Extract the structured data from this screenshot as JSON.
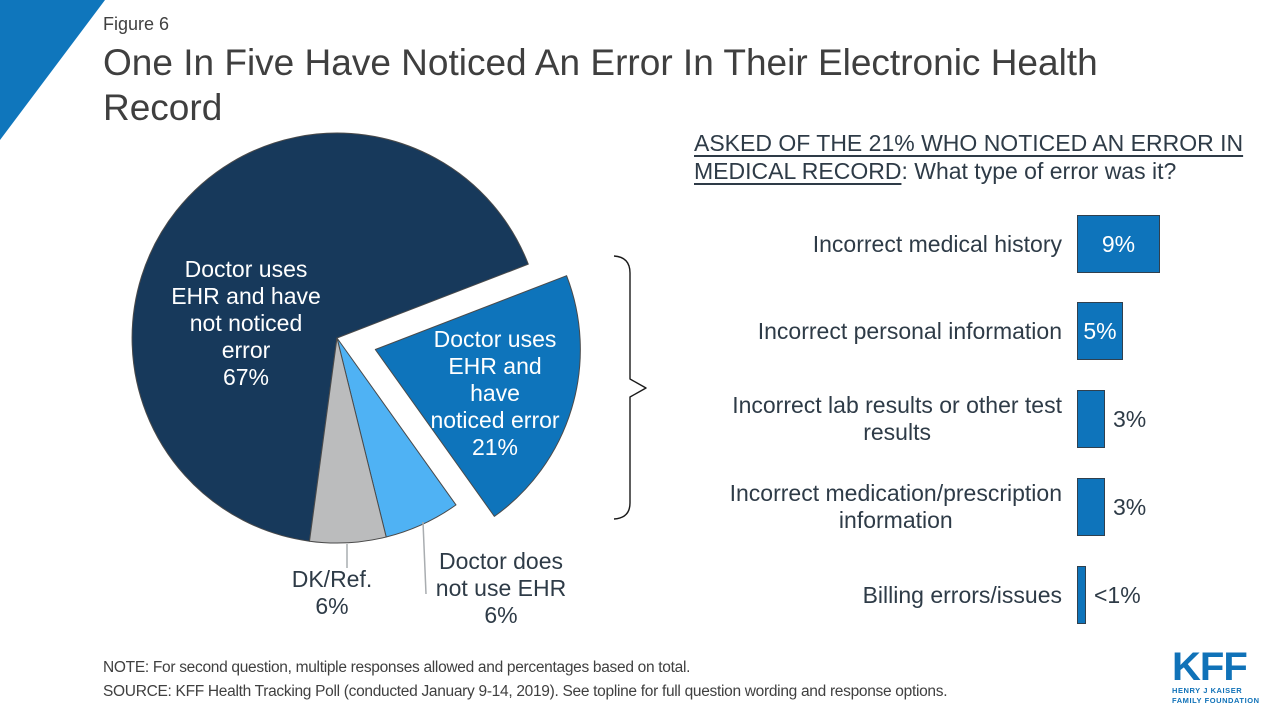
{
  "page": {
    "figure_label": "Figure 6",
    "title": "One In Five Have Noticed An Error In Their Electronic Health Record",
    "note": "NOTE: For second question, multiple responses allowed and percentages based on total.",
    "source": "SOURCE: KFF Health Tracking Poll (conducted January 9-14, 2019). See topline for full question wording and response options.",
    "logo": {
      "text": "KFF",
      "tagline1": "HENRY J KAISER",
      "tagline2": "FAMILY FOUNDATION"
    }
  },
  "colors": {
    "navy": "#17395B",
    "blue": "#0E74BB",
    "light_blue": "#4FB2F4",
    "gray": "#BBBCBD",
    "accent_blue": "#0F76BC",
    "slate_text": "#2E3B47",
    "gray_text": "#3F3F3F",
    "logo_blue": "#1072B8",
    "slice_stroke": "#4A4A4A"
  },
  "chart_data": [
    {
      "type": "pie",
      "title": "",
      "legend": "none",
      "slices": [
        {
          "label": "Doctor uses EHR and have not noticed error",
          "value": 67,
          "display": "67%",
          "color_key": "navy",
          "exploded": false,
          "label_placement": "inside",
          "label_lines": [
            "Doctor uses",
            "EHR and have",
            "not noticed",
            "error",
            "67%"
          ]
        },
        {
          "label": "Doctor uses EHR and have noticed error",
          "value": 21,
          "display": "21%",
          "color_key": "blue",
          "exploded": true,
          "label_placement": "inside",
          "label_lines": [
            "Doctor uses",
            "EHR and",
            "have",
            "noticed error",
            "21%"
          ]
        },
        {
          "label": "Doctor does not use EHR",
          "value": 6,
          "display": "6%",
          "color_key": "light_blue",
          "exploded": false,
          "label_placement": "outside",
          "label_lines": [
            "Doctor does",
            "not use EHR",
            "6%"
          ]
        },
        {
          "label": "DK/Ref.",
          "value": 6,
          "display": "6%",
          "color_key": "gray",
          "exploded": false,
          "label_placement": "outside",
          "label_lines": [
            "DK/Ref.",
            "6%"
          ]
        }
      ]
    },
    {
      "type": "bar",
      "orientation": "horizontal",
      "question_underline": "ASKED OF THE 21% WHO NOTICED AN ERROR IN MEDICAL RECORD",
      "question_rest": ": What type of error was it?",
      "categories": [
        "Incorrect medical history",
        "Incorrect personal information",
        "Incorrect lab results or other test results",
        "Incorrect medication/prescription information",
        "Billing errors/issues"
      ],
      "values": [
        9,
        5,
        3,
        3,
        1
      ],
      "display_values": [
        "9%",
        "5%",
        "3%",
        "3%",
        "<1%"
      ],
      "label_lines": [
        [
          "Incorrect medical history"
        ],
        [
          "Incorrect personal information"
        ],
        [
          "Incorrect lab results or other test",
          "results"
        ],
        [
          "Incorrect medication/prescription",
          "information"
        ],
        [
          "Billing errors/issues"
        ]
      ],
      "xlim": [
        0,
        10
      ]
    }
  ]
}
